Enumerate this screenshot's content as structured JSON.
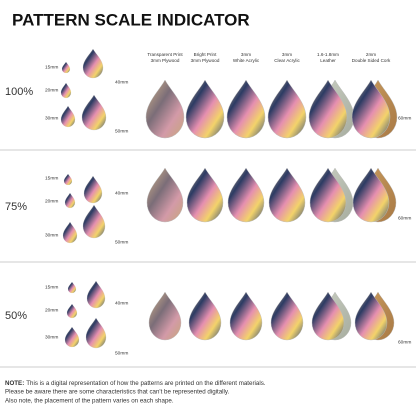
{
  "header": {
    "title": "PATTERN SCALE INDICATOR"
  },
  "materials": [
    [
      "Transparent Print",
      "3mm Plywood"
    ],
    [
      "Bright Print",
      "3mm Plywood"
    ],
    [
      "3mm",
      "White Acrylic"
    ],
    [
      "3mm",
      "Clear Acrylic"
    ],
    [
      "1.6-1.8mm",
      "Leather"
    ],
    [
      "2mm",
      "Double Sided Cork"
    ]
  ],
  "rows": [
    {
      "scale": "100%",
      "labels": [
        "15mm",
        "20mm",
        "30mm",
        "40mm",
        "50mm",
        "60mm"
      ]
    },
    {
      "scale": "75%",
      "labels": [
        "15mm",
        "20mm",
        "30mm",
        "40mm",
        "50mm",
        "60mm"
      ]
    },
    {
      "scale": "50%",
      "labels": [
        "15mm",
        "20mm",
        "30mm",
        "40mm",
        "50mm",
        "60mm"
      ]
    }
  ],
  "note": {
    "label": "NOTE:",
    "lines": [
      "This is a digital representation of how the patterns are printed on the different materials.",
      "Please be aware there are some characteristics that can't be represented digitally.",
      "Also note, the placement of the pattern varies on each shape."
    ]
  }
}
